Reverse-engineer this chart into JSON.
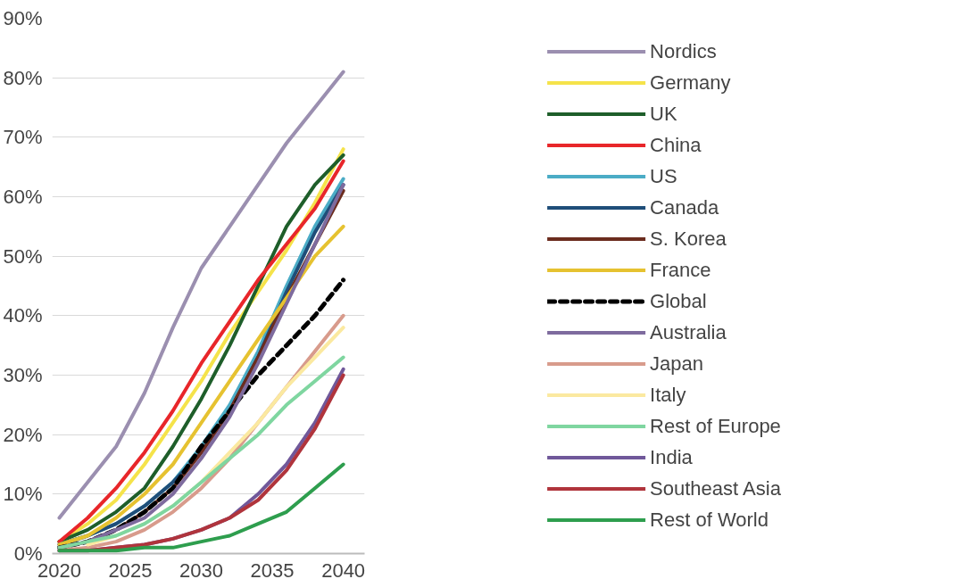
{
  "chart_data": {
    "type": "line",
    "x": [
      2020,
      2022,
      2024,
      2026,
      2028,
      2030,
      2032,
      2034,
      2036,
      2038,
      2040
    ],
    "xlim": [
      2019.5,
      2041.5
    ],
    "xticks": [
      2020,
      2025,
      2030,
      2035,
      2040
    ],
    "ylim": [
      0,
      90
    ],
    "yticks": [
      {
        "value": 0,
        "label": "0%"
      },
      {
        "value": 10,
        "label": "10%"
      },
      {
        "value": 20,
        "label": "20%"
      },
      {
        "value": 30,
        "label": "30%"
      },
      {
        "value": 40,
        "label": "40%"
      },
      {
        "value": 50,
        "label": "50%"
      },
      {
        "value": 60,
        "label": "60%"
      },
      {
        "value": 70,
        "label": "70%"
      },
      {
        "value": 80,
        "label": "80%"
      },
      {
        "value": 90,
        "label": "90%"
      }
    ],
    "grid": "y",
    "legend": "right",
    "line_style": "solid",
    "series": [
      {
        "name": "Nordics",
        "color": "#9b8fb0",
        "values": [
          6,
          12,
          18,
          27,
          38,
          48,
          55,
          62,
          69,
          75,
          81
        ]
      },
      {
        "name": "Germany",
        "color": "#f5e34a",
        "values": [
          2,
          5,
          9,
          15,
          22,
          29,
          37,
          44,
          51,
          59,
          68
        ]
      },
      {
        "name": "UK",
        "color": "#1e5e2a",
        "values": [
          2,
          4,
          7,
          11,
          18,
          26,
          35,
          45,
          55,
          62,
          67
        ]
      },
      {
        "name": "China",
        "color": "#e8262a",
        "values": [
          2,
          6,
          11,
          17,
          24,
          32,
          39,
          46,
          52,
          58,
          66
        ]
      },
      {
        "name": "US",
        "color": "#4bacc6",
        "values": [
          1.5,
          3,
          5,
          8,
          12,
          18,
          25,
          34,
          45,
          55,
          63
        ]
      },
      {
        "name": "Canada",
        "color": "#1f4e79",
        "values": [
          1.5,
          3,
          5,
          8,
          12,
          17,
          24,
          33,
          44,
          54,
          62
        ]
      },
      {
        "name": "S. Korea",
        "color": "#6b2c1e",
        "values": [
          1,
          2,
          4,
          7,
          11,
          17,
          24,
          33,
          43,
          52,
          61
        ]
      },
      {
        "name": "France",
        "color": "#e6c230",
        "values": [
          1.5,
          3,
          6,
          10,
          15,
          22,
          29,
          36,
          43,
          50,
          55
        ]
      },
      {
        "name": "Global",
        "color": "#000000",
        "line_style": "dashed",
        "values": [
          1,
          2,
          4,
          7,
          11,
          18,
          24,
          30,
          35,
          40,
          46
        ]
      },
      {
        "name": "Australia",
        "color": "#7e6b9e",
        "values": [
          1,
          2,
          4,
          6,
          10,
          16,
          23,
          32,
          42,
          52,
          62
        ]
      },
      {
        "name": "Japan",
        "color": "#d89b8c",
        "values": [
          0.5,
          1,
          2,
          4,
          7,
          11,
          16,
          22,
          28,
          34,
          40
        ]
      },
      {
        "name": "Italy",
        "color": "#fbe9a0",
        "values": [
          null,
          1.5,
          3,
          5,
          8,
          12,
          17,
          22,
          28,
          33,
          38
        ]
      },
      {
        "name": "Rest of Europe",
        "color": "#7fd6a0",
        "values": [
          1,
          2,
          3,
          5,
          8,
          12,
          16,
          20,
          25,
          29,
          33
        ]
      },
      {
        "name": "India",
        "color": "#70589a",
        "values": [
          0.5,
          0.5,
          1,
          1.5,
          2.5,
          4,
          6,
          10,
          15,
          22,
          31
        ]
      },
      {
        "name": "Southeast Asia",
        "color": "#b0343c",
        "values": [
          0.5,
          0.5,
          1,
          1.5,
          2.5,
          4,
          6,
          9,
          14,
          21,
          30
        ]
      },
      {
        "name": "Rest of World",
        "color": "#2e9e4e",
        "values": [
          0.5,
          0.5,
          0.5,
          1,
          1,
          2,
          3,
          5,
          7,
          11,
          15
        ]
      }
    ]
  }
}
